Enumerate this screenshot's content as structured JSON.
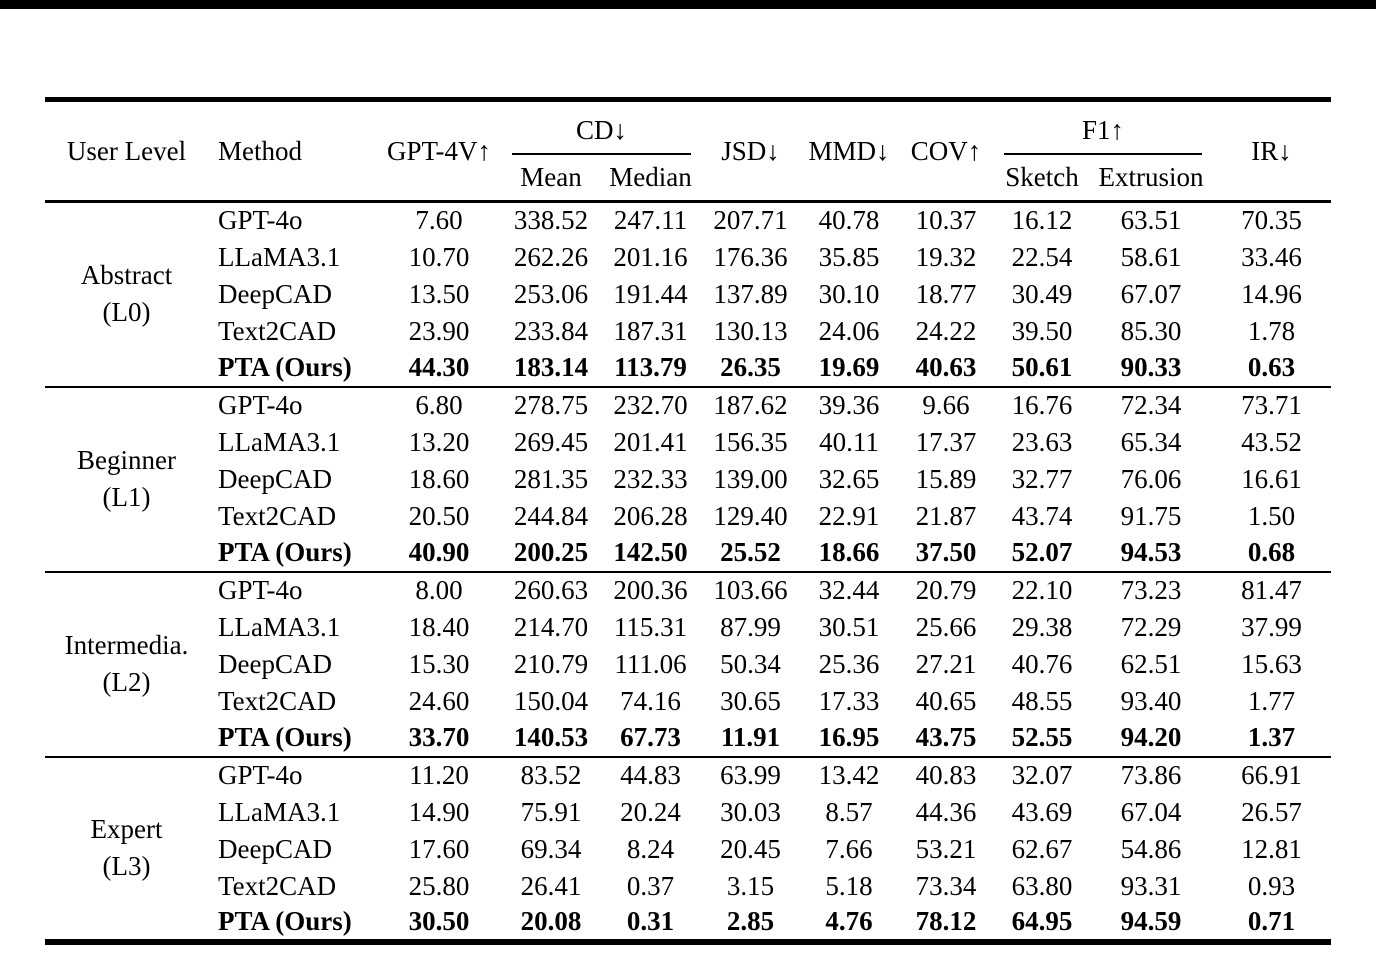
{
  "page": {
    "background": "#ffffff",
    "rule_color": "#000000"
  },
  "table": {
    "header": {
      "user_level": "User Level",
      "method": "Method",
      "gpt4v": "GPT-4V↑",
      "cd_group": "CD↓",
      "cd_mean": "Mean",
      "cd_median": "Median",
      "jsd": "JSD↓",
      "mmd": "MMD↓",
      "cov": "COV↑",
      "f1_group": "F1↑",
      "f1_sketch": "Sketch",
      "f1_extrusion": "Extrusion",
      "ir": "IR↓"
    },
    "metric_columns": [
      "GPT-4V↑",
      "CD Mean↓",
      "CD Median↓",
      "JSD↓",
      "MMD↓",
      "COV↑",
      "F1 Sketch↑",
      "F1 Extrusion↑",
      "IR↓"
    ],
    "groups": [
      {
        "level": "Abstract",
        "code": "(L0)",
        "rows": [
          {
            "method": "GPT-4o",
            "bold": false,
            "values": [
              "7.60",
              "338.52",
              "247.11",
              "207.71",
              "40.78",
              "10.37",
              "16.12",
              "63.51",
              "70.35"
            ]
          },
          {
            "method": "LLaMA3.1",
            "bold": false,
            "values": [
              "10.70",
              "262.26",
              "201.16",
              "176.36",
              "35.85",
              "19.32",
              "22.54",
              "58.61",
              "33.46"
            ]
          },
          {
            "method": "DeepCAD",
            "bold": false,
            "values": [
              "13.50",
              "253.06",
              "191.44",
              "137.89",
              "30.10",
              "18.77",
              "30.49",
              "67.07",
              "14.96"
            ]
          },
          {
            "method": "Text2CAD",
            "bold": false,
            "values": [
              "23.90",
              "233.84",
              "187.31",
              "130.13",
              "24.06",
              "24.22",
              "39.50",
              "85.30",
              "1.78"
            ]
          },
          {
            "method": "PTA (Ours)",
            "bold": true,
            "values": [
              "44.30",
              "183.14",
              "113.79",
              "26.35",
              "19.69",
              "40.63",
              "50.61",
              "90.33",
              "0.63"
            ]
          }
        ]
      },
      {
        "level": "Beginner",
        "code": "(L1)",
        "rows": [
          {
            "method": "GPT-4o",
            "bold": false,
            "values": [
              "6.80",
              "278.75",
              "232.70",
              "187.62",
              "39.36",
              "9.66",
              "16.76",
              "72.34",
              "73.71"
            ]
          },
          {
            "method": "LLaMA3.1",
            "bold": false,
            "values": [
              "13.20",
              "269.45",
              "201.41",
              "156.35",
              "40.11",
              "17.37",
              "23.63",
              "65.34",
              "43.52"
            ]
          },
          {
            "method": "DeepCAD",
            "bold": false,
            "values": [
              "18.60",
              "281.35",
              "232.33",
              "139.00",
              "32.65",
              "15.89",
              "32.77",
              "76.06",
              "16.61"
            ]
          },
          {
            "method": "Text2CAD",
            "bold": false,
            "values": [
              "20.50",
              "244.84",
              "206.28",
              "129.40",
              "22.91",
              "21.87",
              "43.74",
              "91.75",
              "1.50"
            ]
          },
          {
            "method": "PTA (Ours)",
            "bold": true,
            "values": [
              "40.90",
              "200.25",
              "142.50",
              "25.52",
              "18.66",
              "37.50",
              "52.07",
              "94.53",
              "0.68"
            ]
          }
        ]
      },
      {
        "level": "Intermedia.",
        "code": "(L2)",
        "rows": [
          {
            "method": "GPT-4o",
            "bold": false,
            "values": [
              "8.00",
              "260.63",
              "200.36",
              "103.66",
              "32.44",
              "20.79",
              "22.10",
              "73.23",
              "81.47"
            ]
          },
          {
            "method": "LLaMA3.1",
            "bold": false,
            "values": [
              "18.40",
              "214.70",
              "115.31",
              "87.99",
              "30.51",
              "25.66",
              "29.38",
              "72.29",
              "37.99"
            ]
          },
          {
            "method": "DeepCAD",
            "bold": false,
            "values": [
              "15.30",
              "210.79",
              "111.06",
              "50.34",
              "25.36",
              "27.21",
              "40.76",
              "62.51",
              "15.63"
            ]
          },
          {
            "method": "Text2CAD",
            "bold": false,
            "values": [
              "24.60",
              "150.04",
              "74.16",
              "30.65",
              "17.33",
              "40.65",
              "48.55",
              "93.40",
              "1.77"
            ]
          },
          {
            "method": "PTA (Ours)",
            "bold": true,
            "values": [
              "33.70",
              "140.53",
              "67.73",
              "11.91",
              "16.95",
              "43.75",
              "52.55",
              "94.20",
              "1.37"
            ]
          }
        ]
      },
      {
        "level": "Expert",
        "code": "(L3)",
        "rows": [
          {
            "method": "GPT-4o",
            "bold": false,
            "values": [
              "11.20",
              "83.52",
              "44.83",
              "63.99",
              "13.42",
              "40.83",
              "32.07",
              "73.86",
              "66.91"
            ]
          },
          {
            "method": "LLaMA3.1",
            "bold": false,
            "values": [
              "14.90",
              "75.91",
              "20.24",
              "30.03",
              "8.57",
              "44.36",
              "43.69",
              "67.04",
              "26.57"
            ]
          },
          {
            "method": "DeepCAD",
            "bold": false,
            "values": [
              "17.60",
              "69.34",
              "8.24",
              "20.45",
              "7.66",
              "53.21",
              "62.67",
              "54.86",
              "12.81"
            ]
          },
          {
            "method": "Text2CAD",
            "bold": false,
            "values": [
              "25.80",
              "26.41",
              "0.37",
              "3.15",
              "5.18",
              "73.34",
              "63.80",
              "93.31",
              "0.93"
            ]
          },
          {
            "method": "PTA (Ours)",
            "bold": true,
            "values": [
              "30.50",
              "20.08",
              "0.31",
              "2.85",
              "4.76",
              "78.12",
              "64.95",
              "94.59",
              "0.71"
            ]
          }
        ]
      }
    ]
  }
}
